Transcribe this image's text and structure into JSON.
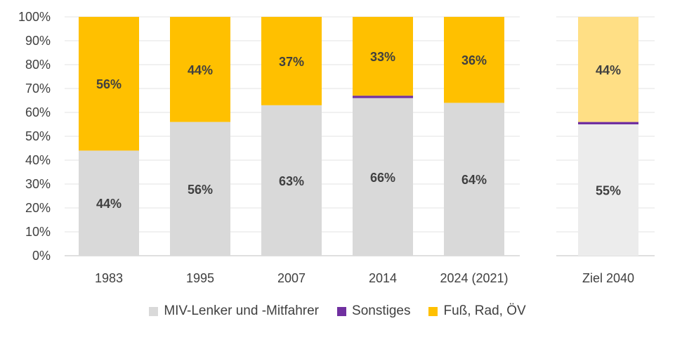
{
  "chart_data": {
    "type": "bar",
    "stacked": true,
    "percent": true,
    "ylim": [
      0,
      100
    ],
    "yticks": [
      "0%",
      "10%",
      "20%",
      "30%",
      "40%",
      "50%",
      "60%",
      "70%",
      "80%",
      "90%",
      "100%"
    ],
    "grid": true,
    "legend_position": "bottom",
    "categories": [
      "1983",
      "1995",
      "2007",
      "2014",
      "2024 (2021)",
      "Ziel 2040"
    ],
    "series": [
      {
        "name": "MIV-Lenker und -Mitfahrer",
        "color": "#d9d9d9",
        "target_color": "#ececec",
        "values": [
          44,
          56,
          63,
          66,
          64,
          55
        ],
        "labels": [
          "44%",
          "56%",
          "63%",
          "66%",
          "64%",
          "55%"
        ]
      },
      {
        "name": "Sonstiges",
        "color": "#7030a0",
        "values": [
          0,
          0,
          0,
          1,
          0,
          1
        ],
        "labels": [
          "",
          "",
          "",
          "",
          "",
          ""
        ]
      },
      {
        "name": "Fuß, Rad, ÖV",
        "color": "#ffc000",
        "target_color": "#ffdf85",
        "values": [
          56,
          44,
          37,
          33,
          36,
          44
        ],
        "labels": [
          "56%",
          "44%",
          "37%",
          "33%",
          "36%",
          "44%"
        ]
      }
    ]
  }
}
